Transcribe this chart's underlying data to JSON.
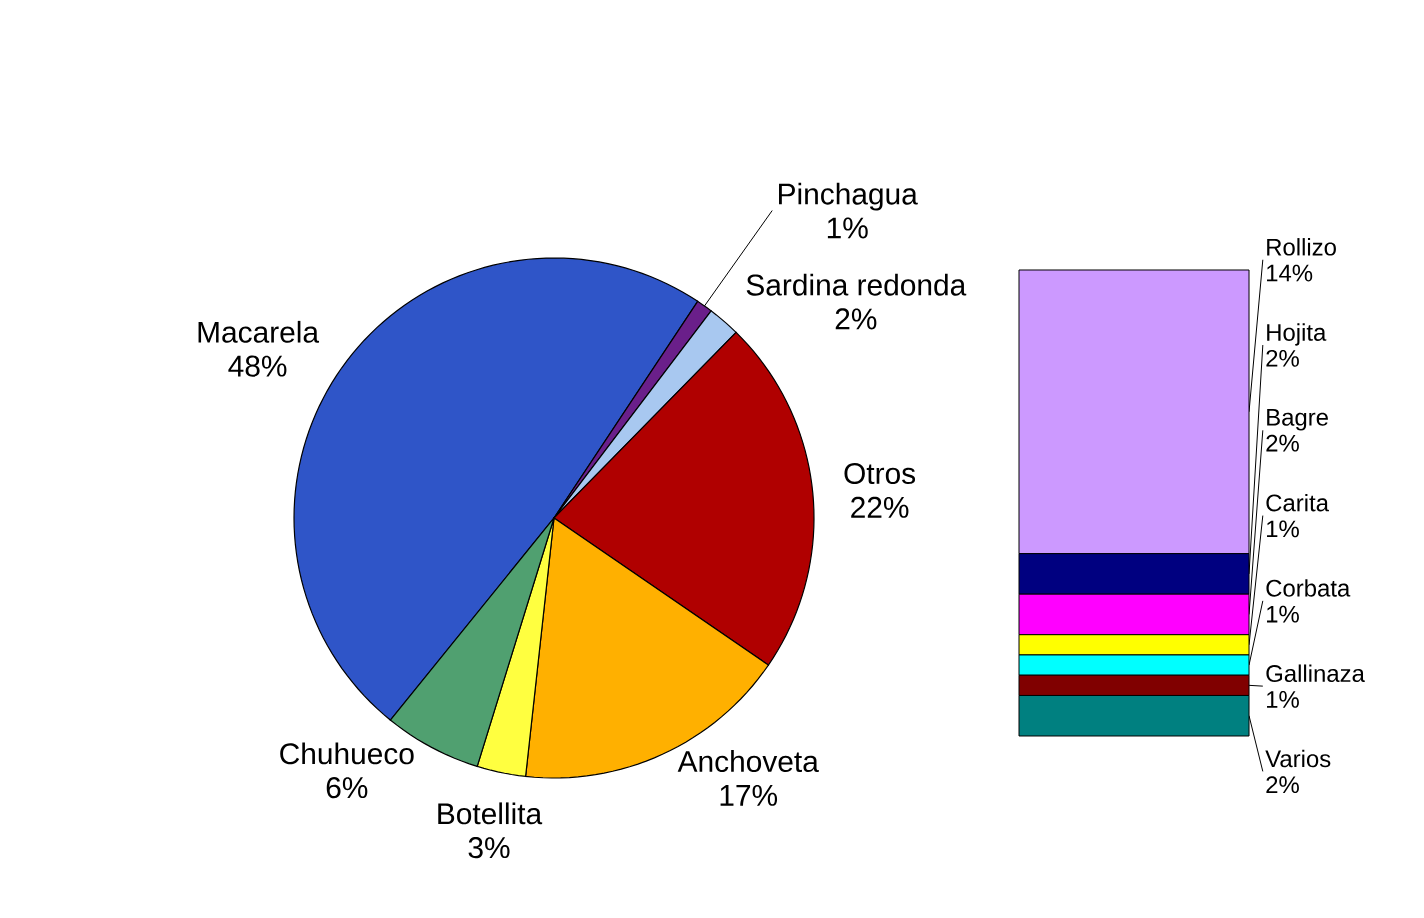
{
  "chart_data": [
    {
      "type": "pie",
      "categories": [
        "Macarela",
        "Pinchagua",
        "Sardina redonda",
        "Otros",
        "Anchoveta",
        "Botellita",
        "Chuhueco"
      ],
      "values": [
        48,
        1,
        2,
        22,
        17,
        3,
        6
      ],
      "value_labels": [
        "48%",
        "1%",
        "2%",
        "22%",
        "17%",
        "3%",
        "6%"
      ],
      "colors": [
        "#2f55c8",
        "#6a1f8a",
        "#a8c8f0",
        "#b00000",
        "#ffb000",
        "#ffff40",
        "#50a070"
      ]
    },
    {
      "type": "bar",
      "stacked": true,
      "categories": [
        null
      ],
      "series": [
        {
          "name": "Varios",
          "color": "#008080",
          "values": [
            2
          ],
          "value_labels": [
            "2%"
          ]
        },
        {
          "name": "Gallinaza",
          "color": "#800000",
          "values": [
            1
          ],
          "value_labels": [
            "1%"
          ]
        },
        {
          "name": "Corbata",
          "color": "#00ffff",
          "values": [
            1
          ],
          "value_labels": [
            "1%"
          ]
        },
        {
          "name": "Carita",
          "color": "#ffff00",
          "values": [
            1
          ],
          "value_labels": [
            "1%"
          ]
        },
        {
          "name": "Bagre",
          "color": "#ff00ff",
          "values": [
            2
          ],
          "value_labels": [
            "2%"
          ]
        },
        {
          "name": "Hojita",
          "color": "#000080",
          "values": [
            2
          ],
          "value_labels": [
            "2%"
          ]
        },
        {
          "name": "Rollizo",
          "color": "#cc99ff",
          "values": [
            14
          ],
          "value_labels": [
            "14%"
          ]
        }
      ]
    }
  ]
}
